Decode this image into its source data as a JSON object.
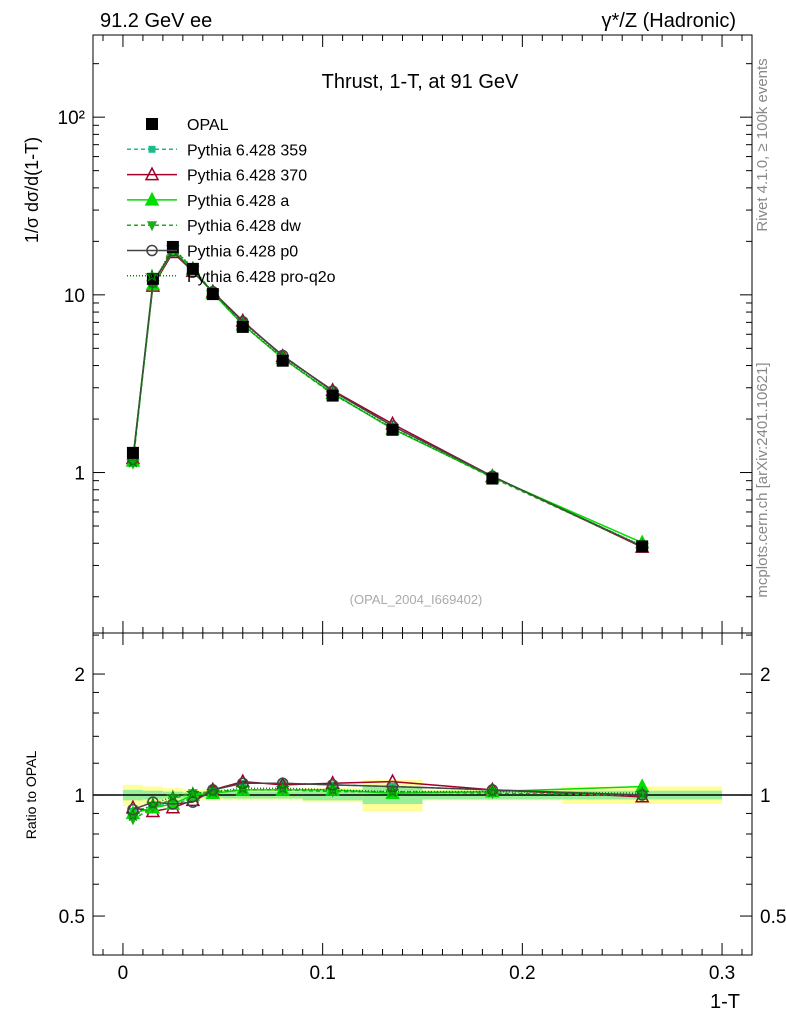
{
  "header": {
    "left": "91.2 GeV ee",
    "right": "γ*/Z (Hadronic)"
  },
  "side": {
    "rivet": "Rivet 4.1.0, ≥ 100k events",
    "mcplots": "mcplots.cern.ch [arXiv:2401.10621]"
  },
  "chart_data": [
    {
      "type": "line",
      "title": "Thrust, 1-T, at 91 GeV",
      "ylabel": "1/σ  dσ/d(1-T)",
      "xlabel": "1-T",
      "yscale": "log",
      "ylim": [
        0.125,
        290
      ],
      "xlim": [
        -0.015,
        0.315
      ],
      "yticks": [
        {
          "v": 1,
          "label": "1"
        },
        {
          "v": 10,
          "label": "10"
        },
        {
          "v": 100,
          "label": "10²"
        }
      ],
      "watermark": "(OPAL_2004_I669402)",
      "legend_placement": "top-left",
      "x": [
        0.005,
        0.015,
        0.025,
        0.035,
        0.045,
        0.06,
        0.08,
        0.105,
        0.135,
        0.185,
        0.26
      ],
      "bin_edges": [
        0,
        0.01,
        0.02,
        0.03,
        0.04,
        0.05,
        0.07,
        0.09,
        0.12,
        0.15,
        0.22,
        0.3
      ],
      "data": {
        "name": "OPAL",
        "values": [
          1.29,
          12.3,
          18.6,
          14.0,
          10.1,
          6.6,
          4.26,
          2.71,
          1.74,
          0.925,
          0.384
        ],
        "color": "#000000"
      },
      "series": [
        {
          "name": "Pythia 6.428 359",
          "color": "#1abc8c",
          "dash": "4,3",
          "marker": "square",
          "ratio": [
            0.91,
            0.94,
            0.95,
            0.98,
            1.03,
            1.07,
            1.07,
            1.06,
            1.05,
            1.03,
            1.0
          ]
        },
        {
          "name": "Pythia 6.428 370",
          "color": "#a0002a",
          "dash": "",
          "marker": "tri-open",
          "ratio": [
            0.93,
            0.91,
            0.93,
            0.97,
            1.03,
            1.08,
            1.06,
            1.07,
            1.08,
            1.03,
            0.99
          ]
        },
        {
          "name": "Pythia 6.428 a",
          "color": "#00dd00",
          "dash": "",
          "marker": "tri",
          "ratio": [
            0.9,
            0.93,
            0.95,
            1.0,
            1.01,
            1.03,
            1.03,
            1.03,
            1.01,
            1.02,
            1.05
          ]
        },
        {
          "name": "Pythia 6.428 dw",
          "color": "#22aa22",
          "dash": "4,3",
          "marker": "tri-down",
          "ratio": [
            0.87,
            0.93,
            0.98,
            1.01,
            1.02,
            1.03,
            1.03,
            1.02,
            1.02,
            1.01,
            1.0
          ]
        },
        {
          "name": "Pythia 6.428 p0",
          "color": "#444444",
          "dash": "",
          "marker": "circle-open",
          "ratio": [
            0.92,
            0.96,
            0.95,
            0.96,
            1.03,
            1.07,
            1.07,
            1.06,
            1.05,
            1.03,
            1.0
          ]
        },
        {
          "name": "Pythia 6.428 pro-q2o",
          "color": "#008800",
          "dash": "1,2",
          "marker": "star",
          "ratio": [
            0.89,
            0.95,
            0.99,
            1.01,
            1.02,
            1.04,
            1.04,
            1.03,
            1.02,
            1.02,
            1.01
          ]
        }
      ]
    },
    {
      "type": "line",
      "ylabel": "Ratio to OPAL",
      "yscale": "log",
      "ylim": [
        0.4,
        2.53
      ],
      "yticks": [
        {
          "v": 0.5,
          "label": "0.5"
        },
        {
          "v": 1,
          "label": "1"
        },
        {
          "v": 2,
          "label": "2"
        }
      ],
      "xticks": [
        {
          "v": 0,
          "label": "0"
        },
        {
          "v": 0.1,
          "label": "0.1"
        },
        {
          "v": 0.2,
          "label": "0.2"
        },
        {
          "v": 0.3,
          "label": "0.3"
        }
      ],
      "band_total": [
        0.06,
        0.05,
        0.04,
        0.03,
        0.03,
        0.03,
        0.03,
        0.04,
        0.09,
        0.03,
        0.05
      ],
      "band_stat": [
        0.03,
        0.025,
        0.02,
        0.015,
        0.015,
        0.02,
        0.02,
        0.03,
        0.05,
        0.025,
        0.025
      ]
    }
  ]
}
